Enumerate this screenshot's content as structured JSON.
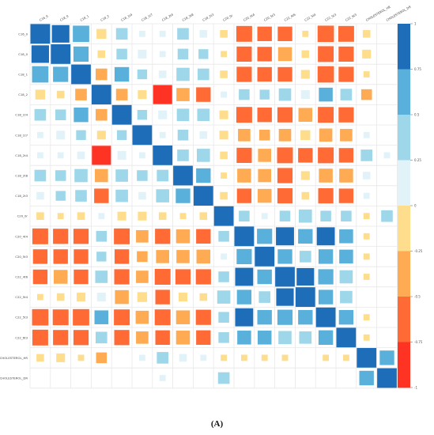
{
  "caption": "(A)",
  "chart_data": {
    "type": "heatmap",
    "variables": [
      "C16_0",
      "C18_0",
      "C18_1",
      "C18_2",
      "C18_1t4",
      "C18_1t7",
      "C18_2t4",
      "C18_2t8",
      "C18_2t3",
      "C20_0r",
      "C20_4t4",
      "C20_5t3",
      "C22_4t6",
      "C22_5t4",
      "C22_5t3",
      "C22_6t3",
      "CHOLESTEROL_HR",
      "CHOLESTEROL_DR"
    ],
    "matrix": [
      [
        1.0,
        0.8,
        0.7,
        -0.25,
        0.35,
        0.1,
        0.1,
        0.35,
        0.15,
        -0.15,
        -0.65,
        -0.55,
        -0.55,
        -0.1,
        -0.7,
        -0.65,
        -0.15,
        0.0
      ],
      [
        0.8,
        1.0,
        0.6,
        -0.15,
        0.3,
        0.2,
        0.1,
        0.3,
        0.25,
        -0.1,
        -0.6,
        -0.55,
        -0.5,
        -0.15,
        -0.65,
        -0.6,
        -0.2,
        0.0
      ],
      [
        0.7,
        0.6,
        1.0,
        -0.35,
        0.55,
        0.25,
        0.15,
        0.45,
        0.35,
        -0.15,
        -0.6,
        -0.55,
        -0.55,
        -0.2,
        -0.7,
        -0.6,
        -0.1,
        0.0
      ],
      [
        -0.25,
        -0.15,
        -0.35,
        1.0,
        -0.35,
        -0.2,
        -0.95,
        -0.45,
        -0.55,
        0.1,
        0.3,
        0.25,
        0.4,
        0.2,
        0.5,
        0.35,
        -0.3,
        0.0
      ],
      [
        0.35,
        0.3,
        0.55,
        -0.35,
        1.0,
        0.25,
        0.2,
        0.4,
        0.4,
        -0.2,
        -0.65,
        -0.55,
        -0.6,
        -0.5,
        -0.65,
        -0.6,
        0.0,
        0.0
      ],
      [
        0.1,
        0.2,
        0.25,
        -0.2,
        0.25,
        1.0,
        0.1,
        0.3,
        0.15,
        -0.2,
        -0.4,
        -0.3,
        -0.4,
        -0.25,
        -0.45,
        -0.4,
        0.1,
        0.0
      ],
      [
        0.1,
        0.1,
        0.15,
        -0.95,
        0.2,
        0.1,
        1.0,
        0.35,
        0.45,
        -0.15,
        -0.6,
        -0.45,
        -0.65,
        -0.55,
        -0.65,
        -0.55,
        0.35,
        0.1
      ],
      [
        0.35,
        0.3,
        0.45,
        -0.45,
        0.4,
        0.3,
        0.35,
        1.0,
        0.55,
        -0.1,
        -0.5,
        -0.45,
        -0.6,
        -0.2,
        -0.5,
        -0.5,
        0.15,
        0.0
      ],
      [
        0.15,
        0.25,
        0.35,
        -0.55,
        0.4,
        0.15,
        0.45,
        0.55,
        1.0,
        -0.15,
        -0.55,
        -0.5,
        -0.6,
        -0.15,
        -0.6,
        -0.55,
        0.1,
        0.0
      ],
      [
        -0.15,
        -0.1,
        -0.15,
        0.1,
        -0.2,
        -0.2,
        -0.15,
        -0.1,
        -0.15,
        1.0,
        0.3,
        0.1,
        0.3,
        0.45,
        0.3,
        0.3,
        -0.1,
        0.35
      ],
      [
        -0.65,
        -0.6,
        -0.6,
        0.3,
        -0.65,
        -0.4,
        -0.6,
        -0.5,
        -0.55,
        0.3,
        1.0,
        0.6,
        0.85,
        0.55,
        0.85,
        0.5,
        -0.1,
        0.0
      ],
      [
        -0.55,
        -0.55,
        -0.55,
        0.25,
        -0.55,
        -0.3,
        -0.45,
        -0.45,
        -0.5,
        0.1,
        0.6,
        1.0,
        0.55,
        0.35,
        0.55,
        0.5,
        -0.1,
        0.0
      ],
      [
        -0.55,
        -0.5,
        -0.55,
        0.4,
        -0.6,
        -0.4,
        -0.65,
        -0.6,
        -0.6,
        0.3,
        0.85,
        0.55,
        1.0,
        0.8,
        0.6,
        0.45,
        -0.1,
        0.0
      ],
      [
        -0.1,
        -0.15,
        -0.2,
        0.2,
        -0.5,
        -0.25,
        -0.55,
        -0.2,
        -0.15,
        0.45,
        0.55,
        0.35,
        0.8,
        1.0,
        0.55,
        0.4,
        0.0,
        0.0
      ],
      [
        -0.7,
        -0.65,
        -0.7,
        0.5,
        -0.65,
        -0.45,
        -0.65,
        -0.5,
        -0.6,
        0.3,
        0.85,
        0.55,
        0.6,
        0.55,
        1.0,
        0.55,
        -0.1,
        0.0
      ],
      [
        -0.65,
        -0.6,
        -0.6,
        0.35,
        -0.6,
        -0.4,
        -0.55,
        -0.5,
        -0.55,
        0.3,
        0.5,
        0.5,
        0.45,
        0.4,
        0.55,
        1.0,
        -0.1,
        0.0
      ],
      [
        -0.15,
        -0.2,
        -0.1,
        -0.3,
        0.0,
        0.1,
        0.35,
        0.15,
        0.1,
        -0.1,
        -0.1,
        -0.1,
        -0.1,
        0.0,
        -0.1,
        -0.1,
        1.0,
        0.55
      ],
      [
        0.0,
        0.0,
        0.0,
        0.0,
        0.0,
        0.0,
        0.1,
        0.0,
        0.0,
        0.35,
        0.0,
        0.0,
        0.0,
        0.0,
        0.0,
        0.0,
        0.55,
        1.0
      ]
    ],
    "color_scale": {
      "min": -1,
      "max": 1,
      "ticks": [
        "1",
        "0.75",
        "0.5",
        "0.25",
        "0",
        "-0.25",
        "-0.5",
        "-0.75",
        "-1"
      ],
      "colors": [
        "#ff3323",
        "#ff6a35",
        "#feab53",
        "#fedd8c",
        "#e1f3f8",
        "#9fd7ea",
        "#58b0db",
        "#1e6db8"
      ]
    },
    "cell_style": "square sized by |r|",
    "grid": true,
    "legend": "right"
  }
}
